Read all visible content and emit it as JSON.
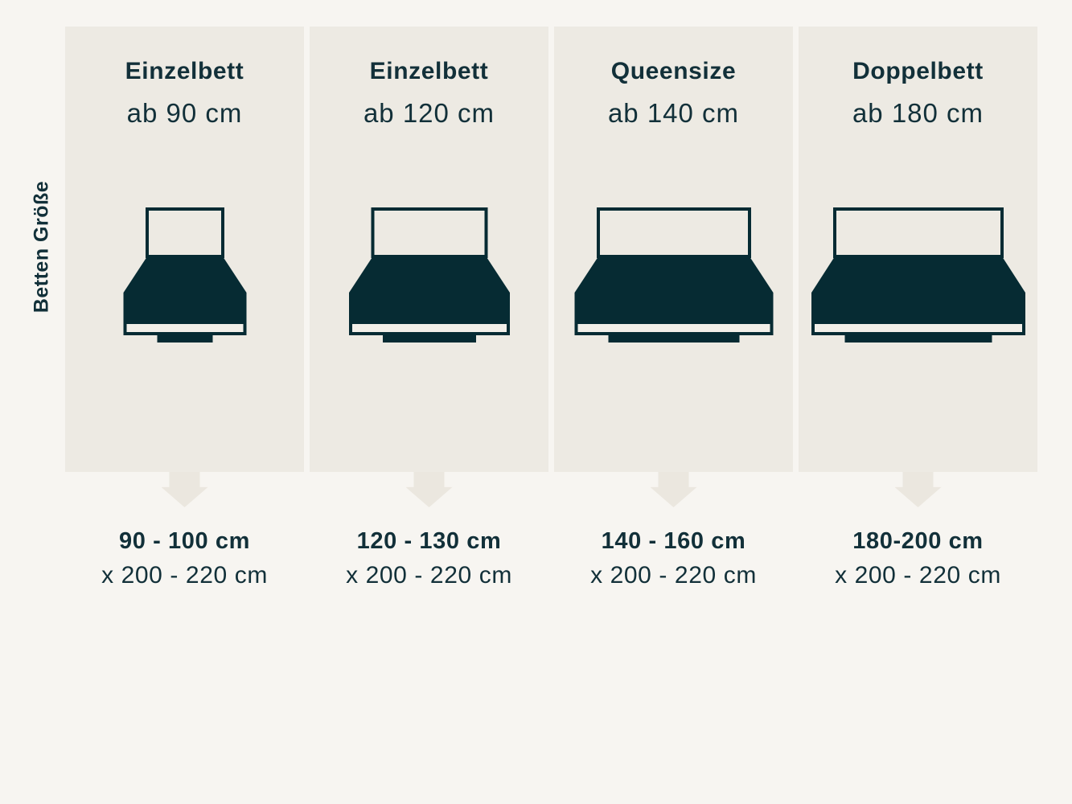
{
  "side_label": "Betten Größe",
  "colors": {
    "page_bg": "#f7f5f1",
    "panel_bg": "#edeae3",
    "arrow": "#ebe7df",
    "bed_dark": "#062b33",
    "bed_frame_fill": "#f2efe9",
    "text": "#123039"
  },
  "columns": [
    {
      "title": "Einzelbett",
      "subtitle": "ab 90 cm",
      "width_label": "90 - 100 cm",
      "length_label": "x 200 - 220 cm",
      "bed": {
        "headboard_w": 94,
        "base_w": 153
      }
    },
    {
      "title": "Einzelbett",
      "subtitle": "ab 120 cm",
      "width_label": "120 - 130 cm",
      "length_label": "x 200 - 220 cm",
      "bed": {
        "headboard_w": 141,
        "base_w": 200
      }
    },
    {
      "title": "Queensize",
      "subtitle": "ab 140 cm",
      "width_label": "140 - 160 cm",
      "length_label": "x 200 - 220 cm",
      "bed": {
        "headboard_w": 188,
        "base_w": 247
      }
    },
    {
      "title": "Doppelbett",
      "subtitle": "ab 180 cm",
      "width_label": "180-200 cm",
      "length_label": "x 200 - 220 cm",
      "bed": {
        "headboard_w": 208,
        "base_w": 266
      }
    }
  ]
}
